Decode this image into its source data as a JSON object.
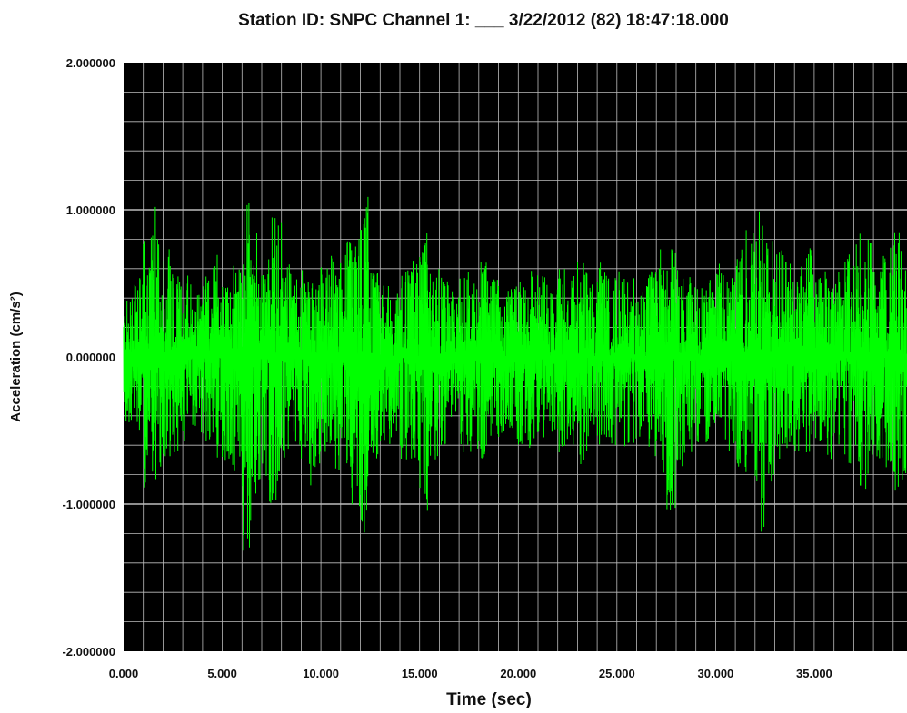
{
  "chart_data": {
    "type": "line",
    "title": "Station ID: SNPC   Channel 1: ___   3/22/2012 (82) 18:47:18.000",
    "xlabel": "Time (sec)",
    "ylabel": "Acceleration (cm/s²)",
    "xlim": [
      0,
      39.7
    ],
    "ylim": [
      -2,
      2
    ],
    "x_ticks": [
      0,
      5,
      10,
      15,
      20,
      25,
      30,
      35
    ],
    "x_tick_labels": [
      "0.000",
      "5.000",
      "10.000",
      "15.000",
      "20.000",
      "25.000",
      "30.000",
      "35.000"
    ],
    "y_ticks": [
      2,
      1,
      0,
      -1,
      -2
    ],
    "y_tick_labels": [
      "2.000000",
      "1.000000",
      "0.000000",
      "-1.000000",
      "-2.000000"
    ],
    "grid": true,
    "legend": "none",
    "colors": {
      "background": "#000000",
      "grid": "#bdbdbd",
      "trace": "#00ff00",
      "frame": "#000000"
    },
    "series": [
      {
        "envelope_bin_sec": 0.5,
        "envelope": [
          [
            0.0,
            0.4,
            -0.5
          ],
          [
            0.5,
            0.55,
            -0.6
          ],
          [
            1.0,
            0.85,
            -0.9
          ],
          [
            1.5,
            1.05,
            -0.85
          ],
          [
            2.0,
            0.75,
            -0.7
          ],
          [
            2.5,
            0.55,
            -0.65
          ],
          [
            3.0,
            0.6,
            -0.6
          ],
          [
            3.5,
            0.5,
            -0.55
          ],
          [
            4.0,
            0.55,
            -0.6
          ],
          [
            4.5,
            0.7,
            -0.7
          ],
          [
            5.0,
            0.5,
            -0.75
          ],
          [
            5.5,
            0.65,
            -0.85
          ],
          [
            6.0,
            1.05,
            -1.35
          ],
          [
            6.5,
            0.85,
            -0.95
          ],
          [
            7.0,
            0.7,
            -1.0
          ],
          [
            7.5,
            1.0,
            -1.05
          ],
          [
            8.0,
            0.65,
            -0.7
          ],
          [
            8.5,
            0.55,
            -0.6
          ],
          [
            9.0,
            0.6,
            -0.9
          ],
          [
            9.5,
            0.5,
            -0.75
          ],
          [
            10.0,
            0.65,
            -0.7
          ],
          [
            10.5,
            0.7,
            -0.8
          ],
          [
            11.0,
            0.8,
            -0.75
          ],
          [
            11.5,
            0.85,
            -1.05
          ],
          [
            12.0,
            1.1,
            -1.2
          ],
          [
            12.5,
            0.6,
            -0.7
          ],
          [
            13.0,
            0.5,
            -0.6
          ],
          [
            13.5,
            0.45,
            -0.55
          ],
          [
            14.0,
            0.6,
            -0.7
          ],
          [
            14.5,
            0.7,
            -0.75
          ],
          [
            15.0,
            0.85,
            -1.1
          ],
          [
            15.5,
            0.6,
            -0.75
          ],
          [
            16.0,
            0.55,
            -0.6
          ],
          [
            16.5,
            0.45,
            -0.55
          ],
          [
            17.0,
            0.6,
            -0.7
          ],
          [
            17.5,
            0.55,
            -0.65
          ],
          [
            18.0,
            0.65,
            -0.7
          ],
          [
            18.5,
            0.55,
            -0.6
          ],
          [
            19.0,
            0.45,
            -0.55
          ],
          [
            19.5,
            0.5,
            -0.6
          ],
          [
            20.0,
            0.55,
            -0.65
          ],
          [
            20.5,
            0.6,
            -0.7
          ],
          [
            21.0,
            0.55,
            -0.6
          ],
          [
            21.5,
            0.5,
            -0.55
          ],
          [
            22.0,
            0.6,
            -0.65
          ],
          [
            22.5,
            0.55,
            -0.6
          ],
          [
            23.0,
            0.7,
            -0.75
          ],
          [
            23.5,
            0.5,
            -0.55
          ],
          [
            24.0,
            0.65,
            -0.6
          ],
          [
            24.5,
            0.55,
            -0.6
          ],
          [
            25.0,
            0.6,
            -0.65
          ],
          [
            25.5,
            0.55,
            -0.6
          ],
          [
            26.0,
            0.45,
            -0.55
          ],
          [
            26.5,
            0.65,
            -0.7
          ],
          [
            27.0,
            0.75,
            -0.8
          ],
          [
            27.5,
            0.8,
            -1.05
          ],
          [
            28.0,
            0.6,
            -0.75
          ],
          [
            28.5,
            0.55,
            -0.65
          ],
          [
            29.0,
            0.5,
            -0.6
          ],
          [
            29.5,
            0.55,
            -0.6
          ],
          [
            30.0,
            0.65,
            -0.65
          ],
          [
            30.5,
            0.6,
            -0.65
          ],
          [
            31.0,
            0.75,
            -0.8
          ],
          [
            31.5,
            0.9,
            -0.85
          ],
          [
            32.0,
            1.05,
            -1.25
          ],
          [
            32.5,
            0.8,
            -0.85
          ],
          [
            33.0,
            0.75,
            -0.8
          ],
          [
            33.5,
            0.7,
            -0.7
          ],
          [
            34.0,
            0.65,
            -0.7
          ],
          [
            34.5,
            0.75,
            -0.65
          ],
          [
            35.0,
            0.55,
            -0.6
          ],
          [
            35.5,
            0.65,
            -0.7
          ],
          [
            36.0,
            0.6,
            -0.65
          ],
          [
            36.5,
            0.7,
            -0.75
          ],
          [
            37.0,
            0.95,
            -0.9
          ],
          [
            37.5,
            0.8,
            -1.0
          ],
          [
            38.0,
            0.6,
            -0.7
          ],
          [
            38.5,
            0.75,
            -0.8
          ],
          [
            39.0,
            0.85,
            -1.0
          ],
          [
            39.5,
            0.6,
            -0.8
          ]
        ]
      }
    ]
  }
}
